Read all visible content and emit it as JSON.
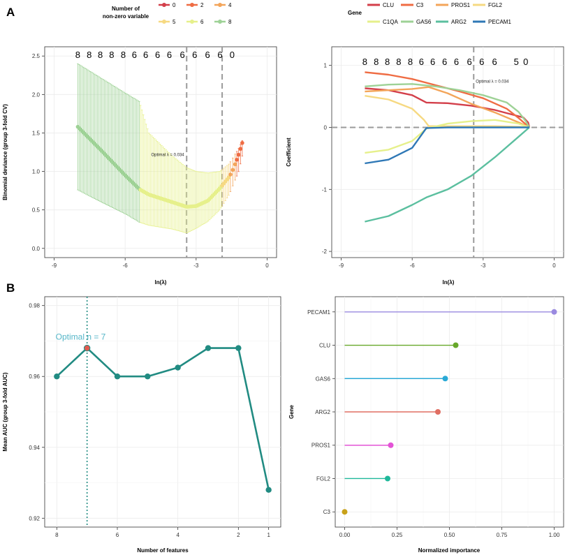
{
  "panel_labels": {
    "a": "A",
    "b": "B"
  },
  "chart_data": [
    {
      "id": "cv_deviance",
      "type": "scatter",
      "title": "",
      "xlabel": "ln(λ)",
      "ylabel": "Binomial deviance (group 3-fold CV)",
      "xlim": [
        -9.4,
        0.4
      ],
      "ylim": [
        -0.12,
        2.62
      ],
      "xticks": [
        -9,
        -6,
        -3,
        0
      ],
      "xtick_labels": [
        "-9",
        "-6",
        "-3",
        "0"
      ],
      "yticks": [
        0,
        0.5,
        1,
        1.5,
        2,
        2.5
      ],
      "ytick_labels": [
        "0.0",
        "0.5",
        "1.0",
        "1.5",
        "2.0",
        "2.5"
      ],
      "top_counts": [
        "8",
        "8",
        "8",
        "8",
        "8",
        "6",
        "6",
        "6",
        "6",
        "6",
        "6",
        "6",
        "6",
        "0"
      ],
      "top_count_x": [
        -8.0,
        -7.52,
        -7.05,
        -6.57,
        -6.08,
        -5.61,
        -5.13,
        -4.63,
        -4.13,
        -3.58,
        -3.06,
        -2.52,
        -1.99,
        -1.48
      ],
      "vlines": [
        -3.4,
        -1.9
      ],
      "annotation": "Optimal λ = 0.034",
      "annotation_x": -4.9,
      "annotation_y": 1.2,
      "legend_title": [
        "Number of",
        "non-zero variable"
      ],
      "legend": [
        {
          "label": "0",
          "color": "#d33f4a"
        },
        {
          "label": "2",
          "color": "#ef6c43"
        },
        {
          "label": "4",
          "color": "#f3a55a"
        },
        {
          "label": "5",
          "color": "#f6d982"
        },
        {
          "label": "6",
          "color": "#e6f08b"
        },
        {
          "label": "8",
          "color": "#9ed296"
        }
      ],
      "segments": [
        {
          "count": "8",
          "color": "#9ed296",
          "x_from": -8.0,
          "x_to": -5.4,
          "n": 45
        },
        {
          "count": "6",
          "color": "#e6f08b",
          "x_from": -5.35,
          "x_to": -1.95,
          "n": 58
        },
        {
          "count": "5",
          "color": "#f6d982",
          "x_from": -1.9,
          "x_to": -1.62,
          "n": 5
        },
        {
          "count": "4",
          "color": "#f3a55a",
          "x_from": -1.55,
          "x_to": -1.35,
          "n": 3
        },
        {
          "count": "2",
          "color": "#ef6c43",
          "x_from": -1.28,
          "x_to": -1.05,
          "n": 4
        }
      ],
      "curve_knots": {
        "x": [
          -8.0,
          -7.0,
          -6.0,
          -5.4,
          -5.0,
          -4.0,
          -3.4,
          -3.0,
          -2.5,
          -2.0,
          -1.6,
          -1.4,
          -1.2,
          -1.05
        ],
        "mean": [
          1.58,
          1.27,
          0.95,
          0.77,
          0.7,
          0.6,
          0.54,
          0.55,
          0.62,
          0.78,
          0.93,
          1.05,
          1.22,
          1.37
        ],
        "upper": [
          2.4,
          2.21,
          2.02,
          1.91,
          1.5,
          1.2,
          1.05,
          1.0,
          0.98,
          1.0,
          1.1,
          1.2,
          1.3,
          1.4
        ],
        "lower": [
          0.76,
          0.6,
          0.45,
          0.34,
          0.3,
          0.25,
          0.2,
          0.26,
          0.35,
          0.5,
          0.7,
          0.85,
          1.0,
          1.2
        ]
      }
    },
    {
      "id": "coef_path",
      "type": "line",
      "title": "",
      "xlabel": "ln(λ)",
      "ylabel": "Coefficient",
      "xlim": [
        -9.4,
        0.4
      ],
      "ylim": [
        -2.1,
        1.3
      ],
      "xticks": [
        -9,
        -6,
        -3,
        0
      ],
      "xtick_labels": [
        "-9",
        "-6",
        "-3",
        "0"
      ],
      "yticks": [
        -2,
        -1,
        0,
        1
      ],
      "ytick_labels": [
        "-2",
        "-1",
        "0",
        "1"
      ],
      "top_counts": [
        "8",
        "8",
        "8",
        "8",
        "8",
        "6",
        "6",
        "6",
        "6",
        "6",
        "6",
        "6",
        "5",
        "0"
      ],
      "top_count_x": [
        -8.0,
        -7.52,
        -7.05,
        -6.57,
        -6.08,
        -5.61,
        -5.13,
        -4.63,
        -4.13,
        -3.58,
        -3.06,
        -2.52,
        -1.6,
        -1.2
      ],
      "hline": 0,
      "vlines": [
        -3.4
      ],
      "annotation": "Optimal λ = 0.034",
      "annotation_x": -3.4,
      "annotation_y": 0.72,
      "legend_title": "Gene",
      "series": [
        {
          "name": "CLU",
          "color": "#d33f4a",
          "x": [
            -8.0,
            -7.0,
            -6.0,
            -5.4,
            -4.5,
            -3.5,
            -2.5,
            -1.5,
            -1.3,
            -1.1,
            -1.05
          ],
          "values": [
            0.63,
            0.6,
            0.52,
            0.4,
            0.39,
            0.35,
            0.28,
            0.18,
            0.16,
            0.08,
            0.0
          ]
        },
        {
          "name": "C3",
          "color": "#ef6c43",
          "x": [
            -8.0,
            -7.0,
            -6.0,
            -5.0,
            -4.0,
            -3.0,
            -2.0,
            -1.5,
            -1.2,
            -1.05
          ],
          "values": [
            0.89,
            0.85,
            0.78,
            0.68,
            0.58,
            0.47,
            0.3,
            0.15,
            0.05,
            0.0
          ]
        },
        {
          "name": "PROS1",
          "color": "#f3a55a",
          "x": [
            -8.0,
            -7.0,
            -6.0,
            -5.3,
            -4.5,
            -3.5,
            -2.5,
            -1.5,
            -1.05
          ],
          "values": [
            0.58,
            0.6,
            0.62,
            0.65,
            0.55,
            0.38,
            0.24,
            0.08,
            0.0
          ]
        },
        {
          "name": "FGL2",
          "color": "#f6d982",
          "x": [
            -8.0,
            -7.0,
            -6.0,
            -5.5,
            -5.3,
            -4.5,
            -3.5,
            -2.5,
            -1.5,
            -1.05
          ],
          "values": [
            0.51,
            0.45,
            0.3,
            0.12,
            0.02,
            0.02,
            0.02,
            0.02,
            0.01,
            0.0
          ]
        },
        {
          "name": "C1QA",
          "color": "#e6f08b",
          "x": [
            -8.0,
            -7.0,
            -6.0,
            -5.4,
            -4.5,
            -3.5,
            -2.5,
            -1.5,
            -1.05
          ],
          "values": [
            -0.41,
            -0.36,
            -0.22,
            -0.02,
            0.06,
            0.1,
            0.12,
            0.06,
            0.0
          ]
        },
        {
          "name": "GAS6",
          "color": "#9ed296",
          "x": [
            -8.0,
            -7.0,
            -6.0,
            -5.0,
            -4.0,
            -3.0,
            -2.0,
            -1.5,
            -1.2,
            -1.05
          ],
          "values": [
            0.66,
            0.69,
            0.7,
            0.66,
            0.6,
            0.52,
            0.4,
            0.25,
            0.1,
            0.0
          ]
        },
        {
          "name": "ARG2",
          "color": "#5bbf9f",
          "x": [
            -8.0,
            -7.0,
            -6.0,
            -5.4,
            -4.5,
            -3.5,
            -2.5,
            -1.5,
            -1.05
          ],
          "values": [
            -1.52,
            -1.43,
            -1.25,
            -1.13,
            -1.0,
            -0.78,
            -0.48,
            -0.15,
            0.0
          ]
        },
        {
          "name": "PECAM1",
          "color": "#2f78b6",
          "x": [
            -8.0,
            -7.0,
            -6.0,
            -5.4,
            -4.5,
            -3.5,
            -2.5,
            -1.5,
            -1.05
          ],
          "values": [
            -0.58,
            -0.52,
            -0.33,
            -0.01,
            0.0,
            0.0,
            0.0,
            0.0,
            0.0
          ]
        }
      ]
    },
    {
      "id": "auc_features",
      "type": "line",
      "title": "",
      "xlabel": "Number of features",
      "ylabel": "Mean AUC (group 3-fold AUC)",
      "xlim": [
        8.4,
        0.6
      ],
      "ylim": [
        0.9175,
        0.9825
      ],
      "xticks": [
        8,
        6,
        4,
        2,
        1
      ],
      "xtick_labels": [
        "8",
        "6",
        "4",
        "2",
        "1"
      ],
      "yticks": [
        0.92,
        0.94,
        0.96,
        0.98
      ],
      "ytick_labels": [
        "0.92",
        "0.94",
        "0.96",
        "0.98"
      ],
      "x": [
        8,
        7,
        6,
        5,
        4,
        3,
        2,
        1
      ],
      "values": [
        0.96,
        0.968,
        0.96,
        0.96,
        0.9625,
        0.968,
        0.968,
        0.928
      ],
      "line_color": "#218b82",
      "optimal_n": 7,
      "optimal_color": "#e05a4f",
      "annotation": "Optimal n = 7",
      "annotation_color": "#55b6c8"
    },
    {
      "id": "importance",
      "type": "bar",
      "title": "",
      "xlabel": "Normalized importance",
      "ylabel": "Gene",
      "xlim": [
        -0.045,
        1.045
      ],
      "xticks": [
        0,
        0.25,
        0.5,
        0.75,
        1
      ],
      "xtick_labels": [
        "0.00",
        "0.25",
        "0.50",
        "0.75",
        "1.00"
      ],
      "categories": [
        "PECAM1",
        "CLU",
        "GAS6",
        "ARG2",
        "PROS1",
        "FGL2",
        "C3"
      ],
      "values": [
        1.0,
        0.53,
        0.48,
        0.445,
        0.22,
        0.205,
        0.0
      ],
      "colors": [
        "#9a8ae0",
        "#67a82a",
        "#2aa9d6",
        "#e06e62",
        "#e353d6",
        "#1fb89a",
        "#c8a11a"
      ]
    }
  ]
}
